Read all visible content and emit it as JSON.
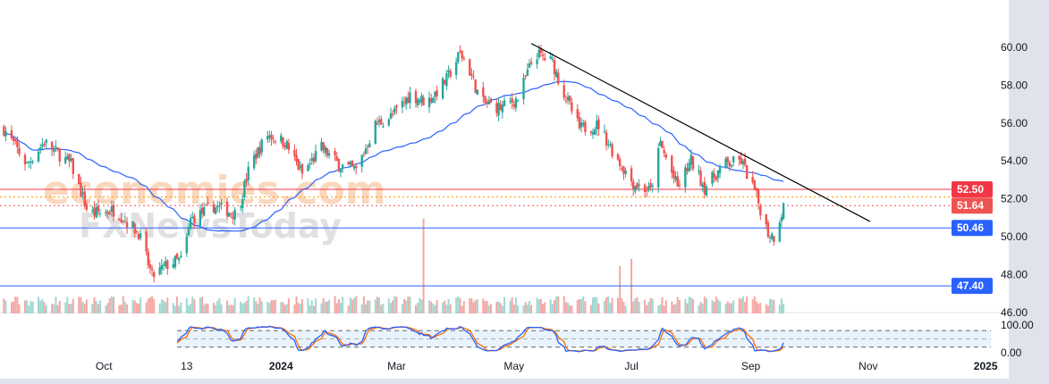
{
  "chart_data": {
    "type": "candlestick",
    "xlim": [
      "2023-08-08",
      "2024-12-31"
    ],
    "ylim": [
      46,
      61
    ],
    "price_ticks": [
      "60.00",
      "58.00",
      "56.00",
      "54.00",
      "52.00",
      "50.00",
      "48.00",
      "46.00"
    ],
    "price_tick_values": [
      60,
      58,
      56,
      54,
      52,
      50,
      48,
      46
    ],
    "x_ticks": [
      {
        "label": "Oct",
        "date": "2023-10-01",
        "bold": false
      },
      {
        "label": "13",
        "date": "2023-11-13",
        "bold": false
      },
      {
        "label": "2024",
        "date": "2024-01-01",
        "bold": true
      },
      {
        "label": "Mar",
        "date": "2024-03-01",
        "bold": false
      },
      {
        "label": "May",
        "date": "2024-05-01",
        "bold": false
      },
      {
        "label": "Jul",
        "date": "2024-07-01",
        "bold": false
      },
      {
        "label": "Sep",
        "date": "2024-09-01",
        "bold": false
      },
      {
        "label": "Nov",
        "date": "2024-11-01",
        "bold": false
      },
      {
        "label": "2025",
        "date": "2025-01-01",
        "bold": true
      }
    ],
    "close_path": [
      [
        "2023-08-10",
        55.7
      ],
      [
        "2023-08-22",
        53.8
      ],
      [
        "2023-08-31",
        55.0
      ],
      [
        "2023-09-14",
        53.8
      ],
      [
        "2023-09-23",
        51.2
      ],
      [
        "2023-10-07",
        51.4
      ],
      [
        "2023-10-19",
        50.2
      ],
      [
        "2023-10-26",
        47.9
      ],
      [
        "2023-11-04",
        48.6
      ],
      [
        "2023-11-11",
        48.8
      ],
      [
        "2023-11-15",
        50.9
      ],
      [
        "2023-11-27",
        51.6
      ],
      [
        "2023-12-09",
        51.2
      ],
      [
        "2023-12-16",
        53.8
      ],
      [
        "2023-12-25",
        55.4
      ],
      [
        "2024-01-03",
        55.0
      ],
      [
        "2024-01-12",
        53.3
      ],
      [
        "2024-01-22",
        54.7
      ],
      [
        "2024-01-31",
        53.8
      ],
      [
        "2024-02-09",
        53.5
      ],
      [
        "2024-02-19",
        55.9
      ],
      [
        "2024-02-28",
        56.4
      ],
      [
        "2024-03-08",
        57.5
      ],
      [
        "2024-03-17",
        57.1
      ],
      [
        "2024-03-27",
        58.3
      ],
      [
        "2024-04-03",
        59.7
      ],
      [
        "2024-04-07",
        59.0
      ],
      [
        "2024-04-14",
        57.1
      ],
      [
        "2024-04-24",
        56.8
      ],
      [
        "2024-05-03",
        57.3
      ],
      [
        "2024-05-12",
        59.7
      ],
      [
        "2024-05-21",
        59.2
      ],
      [
        "2024-05-26",
        57.8
      ],
      [
        "2024-06-04",
        55.7
      ],
      [
        "2024-06-14",
        55.9
      ],
      [
        "2024-06-23",
        54.2
      ],
      [
        "2024-07-02",
        52.8
      ],
      [
        "2024-07-11",
        52.4
      ],
      [
        "2024-07-16",
        54.9
      ],
      [
        "2024-07-25",
        52.6
      ],
      [
        "2024-08-01",
        54.0
      ],
      [
        "2024-08-08",
        52.6
      ],
      [
        "2024-08-18",
        53.8
      ],
      [
        "2024-08-27",
        54.0
      ],
      [
        "2024-09-03",
        52.4
      ],
      [
        "2024-09-10",
        50.2
      ],
      [
        "2024-09-13",
        50.0
      ],
      [
        "2024-09-18",
        51.6
      ]
    ],
    "moving_average_period": 50,
    "volume_spikes": [
      [
        "2024-03-15",
        4.0
      ],
      [
        "2024-06-25",
        2.0
      ],
      [
        "2024-07-01",
        2.3
      ]
    ],
    "levels": [
      {
        "label": "52.50",
        "value": 52.5,
        "color": "#f23645",
        "style": "solid"
      },
      {
        "label": "",
        "value": 52.1,
        "color": "#ff9800",
        "style": "dotted"
      },
      {
        "label": "51.64",
        "value": 51.64,
        "color": "#ef5350",
        "style": "dotted"
      },
      {
        "label": "50.46",
        "value": 50.46,
        "color": "#2962ff",
        "style": "solid"
      },
      {
        "label": "47.40",
        "value": 47.4,
        "color": "#2962ff",
        "style": "solid"
      }
    ],
    "trendline": [
      [
        "2024-05-10",
        60.2
      ],
      [
        "2024-11-02",
        50.8
      ]
    ],
    "oscillator": {
      "type": "stochastic",
      "ticks": [
        "100.00",
        "0.00"
      ],
      "upper": 80,
      "lower": 20,
      "start": "2023-11-08"
    },
    "colors": {
      "up": "#26a69a",
      "down": "#ef5350",
      "ma": "#2962ff",
      "k": "#2962ff",
      "d": "#ff6d00"
    }
  },
  "watermark": {
    "line1": "economies.com",
    "line2": "FXNewsToday"
  }
}
